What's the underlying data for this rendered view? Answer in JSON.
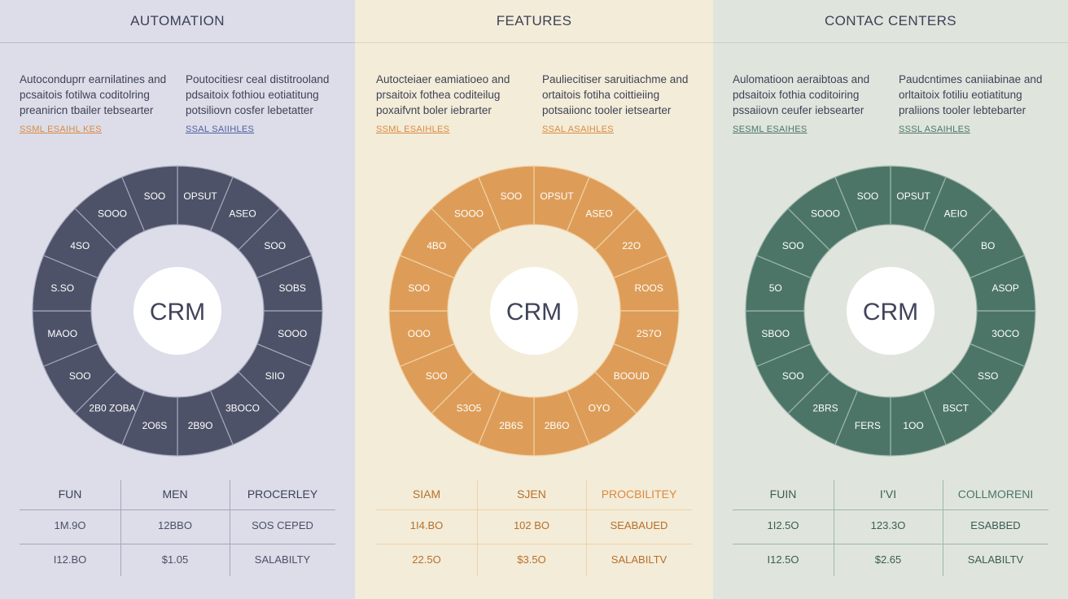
{
  "palette": {
    "automation": {
      "bg": "#dcdde9",
      "ring": "#4e5268",
      "ring_line": "#a3a7ba",
      "hole": "#dcdde9",
      "accent": "#d98a42",
      "link": "#525ea1",
      "text": "#3c4157"
    },
    "features": {
      "bg": "#f3ecd8",
      "ring": "#dd9d58",
      "ring_line": "#f1d2a6",
      "hole": "#f3ecd8",
      "accent": "#d98a42",
      "link": "#d98a42",
      "text": "#b86f2c"
    },
    "contact": {
      "bg": "#dfe5dd",
      "ring": "#4c7568",
      "ring_line": "#9fb5ab",
      "hole": "#dfe5dd",
      "accent": "#4c7568",
      "link": "#4c7568",
      "text": "#3c5c52"
    }
  },
  "panels": [
    {
      "key": "automation",
      "title": "AUTOMATION",
      "columns": [
        {
          "lines": [
            "Autoconduprr earnilatines and",
            "pcsaitois fotilwa coditolring",
            "preaniricn tbailer tebsearter"
          ],
          "tag": "SSML ESAIHL KES"
        },
        {
          "lines": [
            "Poutocitiesr ceaI distitrooland",
            "pdsaitoix fothiou eotiatitung",
            "potsiliovn cosfer lebetatter"
          ],
          "tag": "SSAL SAIIHLES"
        }
      ],
      "center": "CRM",
      "segments": [
        "OPSUT",
        "ASEO",
        "SOO",
        "SOBS",
        "SOOO",
        "SIIO",
        "3BOCO",
        "2B9O",
        "2O6S",
        "2B0 ZOBA",
        "SOO",
        "MAOO",
        "S.SO",
        "4SO",
        "SOOO",
        "SOO"
      ],
      "table": {
        "headers": [
          "FUN",
          "MEN",
          "PROCERLEY"
        ],
        "rows": [
          [
            "1M.9O",
            "12BBO",
            "SOS CEPED"
          ],
          [
            "I12.BO",
            "$1.05",
            "SALABILTY"
          ]
        ]
      }
    },
    {
      "key": "features",
      "title": "FEATURES",
      "columns": [
        {
          "lines": [
            "Autocteiaer eamiatioeo and",
            "prsaitoix fothea coditeilug",
            "poxaifvnt boler iebrarter"
          ],
          "tag": "SSML ESAIHLES"
        },
        {
          "lines": [
            "Pauliecitiser saruitiachme and",
            "ortaitois fotiha coittieiing",
            "potsaiionc tooler ietsearter"
          ],
          "tag": "SSAL ASAIHLES"
        }
      ],
      "center": "CRM",
      "segments": [
        "OPSUT",
        "ASEO",
        "22O",
        "ROOS",
        "2S7O",
        "BOOUD",
        "OYO",
        "2B6O",
        "2B6S",
        "S3O5",
        "SOO",
        "OOO",
        "SOO",
        "4BO",
        "SOOO",
        "SOO"
      ],
      "table": {
        "headers": [
          "SIAM",
          "SJEN",
          "PROCBILITEY"
        ],
        "rows": [
          [
            "1I4.BO",
            "102 BO",
            "SEABAUED"
          ],
          [
            "22.5O",
            "$3.5O",
            "SALABILTV"
          ]
        ]
      }
    },
    {
      "key": "contact",
      "title": "CONTAC CENTERS",
      "columns": [
        {
          "lines": [
            "Aulomatioon aeraibtoas and",
            "pdsaitoix fothia coditoiring",
            "pssaiiovn ceufer iebsearter"
          ],
          "tag": "SESML ESAIHES"
        },
        {
          "lines": [
            "Paudcntimes caniiabinae and",
            "orltaitoix fotiliu eotiatitung",
            "praliions tooler lebtebarter"
          ],
          "tag": "SSSL ASAIHLES"
        }
      ],
      "center": "CRM",
      "segments": [
        "OPSUT",
        "AEIO",
        "BO",
        "ASOP",
        "3OCO",
        "SSO",
        "BSCT",
        "1OO",
        "FERS",
        "2BRS",
        "SOO",
        "SBOO",
        "5O",
        "SOO",
        "SOOO",
        "SOO"
      ],
      "table": {
        "headers": [
          "FUIN",
          "I’VI",
          "COLLMORENI"
        ],
        "rows": [
          [
            "1I2.5O",
            "123.3O",
            "ESABBED"
          ],
          [
            "I12.5O",
            "$2.65",
            "SALABILTV"
          ]
        ]
      }
    }
  ]
}
